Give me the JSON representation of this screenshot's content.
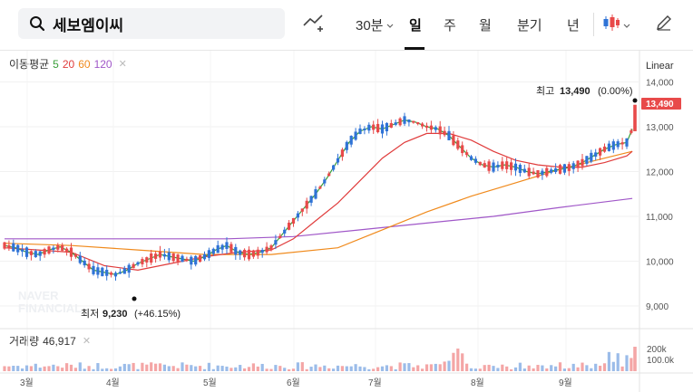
{
  "search": {
    "query": "세보엠이씨"
  },
  "toolbar": {
    "interval_label": "30분",
    "tabs": [
      "일",
      "주",
      "월",
      "분기",
      "년"
    ],
    "active_tab": "일"
  },
  "ma_legend": {
    "label": "이동평균",
    "periods": [
      {
        "value": "5",
        "color": "#3aa03a"
      },
      {
        "value": "20",
        "color": "#e03c3c"
      },
      {
        "value": "60",
        "color": "#f08a1c"
      },
      {
        "value": "120",
        "color": "#a057c8"
      }
    ]
  },
  "scale_mode": "Linear",
  "price_axis": {
    "ticks": [
      "14,000",
      "13,000",
      "12,000",
      "11,000",
      "10,000",
      "9,000"
    ],
    "current_price": "13,490"
  },
  "annotations": {
    "high": {
      "label": "최고",
      "value": "13,490",
      "change": "(0.00%)"
    },
    "low": {
      "label": "최저",
      "value": "9,230",
      "change": "(+46.15%)"
    }
  },
  "volume": {
    "label": "거래량",
    "value": "46,917",
    "axis_ticks": [
      "200k",
      "100.0k"
    ]
  },
  "time_axis": [
    "3월",
    "4월",
    "5월",
    "6월",
    "7월",
    "8월",
    "9월"
  ],
  "watermark": [
    "NAVER",
    "FINANCIAL"
  ],
  "colors": {
    "up": "#e84a4a",
    "down": "#2f73d6",
    "accent": "#e84a4a"
  },
  "chart_data": {
    "type": "candlestick",
    "y_range": [
      8800,
      14300
    ],
    "ma5_points": [
      [
        0,
        10350
      ],
      [
        10,
        10300
      ],
      [
        20,
        10200
      ],
      [
        30,
        10150
      ],
      [
        40,
        10250
      ],
      [
        50,
        10320
      ],
      [
        60,
        10200
      ],
      [
        70,
        10000
      ],
      [
        80,
        9800
      ],
      [
        90,
        9750
      ],
      [
        100,
        9700
      ],
      [
        110,
        9800
      ],
      [
        120,
        9950
      ],
      [
        130,
        10050
      ],
      [
        140,
        10150
      ],
      [
        150,
        10100
      ],
      [
        160,
        10050
      ],
      [
        170,
        10000
      ],
      [
        180,
        10100
      ],
      [
        190,
        10250
      ],
      [
        200,
        10350
      ],
      [
        210,
        10200
      ],
      [
        220,
        10150
      ],
      [
        230,
        10200
      ],
      [
        240,
        10300
      ],
      [
        250,
        10600
      ],
      [
        260,
        10900
      ],
      [
        270,
        11200
      ],
      [
        280,
        11500
      ],
      [
        290,
        11850
      ],
      [
        300,
        12250
      ],
      [
        310,
        12650
      ],
      [
        320,
        12900
      ],
      [
        330,
        13000
      ],
      [
        340,
        12950
      ],
      [
        350,
        13050
      ],
      [
        360,
        13150
      ],
      [
        370,
        13100
      ],
      [
        380,
        13000
      ],
      [
        390,
        12950
      ],
      [
        400,
        12800
      ],
      [
        410,
        12550
      ],
      [
        420,
        12300
      ],
      [
        430,
        12150
      ],
      [
        440,
        12100
      ],
      [
        450,
        12150
      ],
      [
        460,
        12100
      ],
      [
        470,
        12000
      ],
      [
        480,
        11950
      ],
      [
        490,
        12000
      ],
      [
        500,
        12050
      ],
      [
        510,
        12100
      ],
      [
        520,
        12200
      ],
      [
        530,
        12350
      ],
      [
        540,
        12500
      ],
      [
        550,
        12600
      ],
      [
        560,
        12650
      ],
      [
        565,
        12950
      ]
    ],
    "ma20_points": [
      [
        0,
        10300
      ],
      [
        30,
        10250
      ],
      [
        60,
        10200
      ],
      [
        90,
        9900
      ],
      [
        120,
        9800
      ],
      [
        150,
        9950
      ],
      [
        180,
        10100
      ],
      [
        210,
        10200
      ],
      [
        240,
        10250
      ],
      [
        260,
        10500
      ],
      [
        280,
        10900
      ],
      [
        300,
        11300
      ],
      [
        320,
        11800
      ],
      [
        340,
        12300
      ],
      [
        360,
        12650
      ],
      [
        380,
        12850
      ],
      [
        400,
        12850
      ],
      [
        420,
        12700
      ],
      [
        440,
        12450
      ],
      [
        460,
        12250
      ],
      [
        480,
        12150
      ],
      [
        500,
        12100
      ],
      [
        520,
        12100
      ],
      [
        540,
        12200
      ],
      [
        560,
        12350
      ],
      [
        565,
        12450
      ]
    ],
    "ma60_points": [
      [
        0,
        10400
      ],
      [
        60,
        10350
      ],
      [
        120,
        10250
      ],
      [
        180,
        10150
      ],
      [
        240,
        10150
      ],
      [
        300,
        10300
      ],
      [
        340,
        10700
      ],
      [
        380,
        11100
      ],
      [
        420,
        11450
      ],
      [
        460,
        11750
      ],
      [
        500,
        12050
      ],
      [
        540,
        12300
      ],
      [
        565,
        12450
      ]
    ],
    "ma120_points": [
      [
        0,
        10500
      ],
      [
        100,
        10500
      ],
      [
        200,
        10500
      ],
      [
        260,
        10550
      ],
      [
        320,
        10700
      ],
      [
        380,
        10850
      ],
      [
        440,
        11000
      ],
      [
        500,
        11200
      ],
      [
        565,
        11400
      ]
    ]
  }
}
